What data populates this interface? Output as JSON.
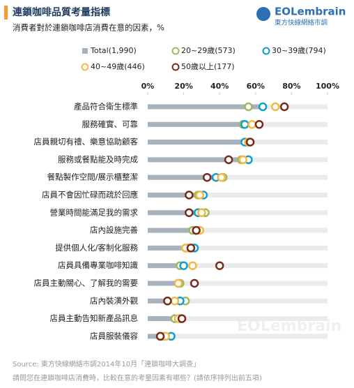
{
  "chart_data": {
    "type": "dot",
    "title": "連鎖咖啡品質考量指標",
    "subtitle": "消費者對於連鎖咖啡店消費在意的因素，%",
    "logo_text": "EOLembrain",
    "logo_subtext": "東方快線網絡市調",
    "watermark": "EOLembrain",
    "categories": [
      "產品符合衛生標準",
      "服務確實、可靠",
      "店員親切有禮、樂意協助顧客",
      "服務或餐點能及時完成",
      "餐點製作空間/展示櫃整潔",
      "店員不會因忙碌而疏於回應",
      "營業時間能滿足我的需求",
      "店內設施完善",
      "提供個人化/客制化服務",
      "店員具備專業咖啡知識",
      "店員主動關心、了解我的需要",
      "店內裝潢外觀",
      "店員主動告知新產品訊息",
      "店員服裝儀容"
    ],
    "series": [
      {
        "name": "Total(1,990)",
        "color": "#a7b2bc",
        "mark": "bar",
        "values": [
          63,
          56,
          55,
          53,
          38,
          28,
          28,
          27,
          24,
          20,
          18,
          17,
          17,
          10
        ]
      },
      {
        "name": "20~29歲(573)",
        "color": "#9bbb59",
        "mark": "circle",
        "values": [
          56,
          53,
          55,
          52,
          42,
          28,
          32,
          25,
          22,
          18,
          18,
          21,
          15,
          9
        ]
      },
      {
        "name": "30~39歲(794)",
        "color": "#0e9fcf",
        "mark": "circle",
        "values": [
          64,
          54,
          54,
          56,
          38,
          31,
          28,
          27,
          26,
          20,
          17,
          18,
          18,
          13
        ]
      },
      {
        "name": "40~49歲(446)",
        "color": "#f4b942",
        "mark": "circle",
        "values": [
          71,
          58,
          56,
          53,
          41,
          29,
          30,
          29,
          21,
          25,
          17,
          15,
          17,
          10
        ]
      },
      {
        "name": "50歲以上(177)",
        "color": "#7a2a1d",
        "mark": "circle",
        "values": [
          76,
          62,
          57,
          45,
          33,
          23,
          23,
          27,
          24,
          40,
          26,
          11,
          19,
          7
        ]
      }
    ],
    "xlim": [
      0,
      100
    ],
    "xticks": [
      {
        "value": 0,
        "label": "0%"
      },
      {
        "value": 20,
        "label": "20%"
      },
      {
        "value": 40,
        "label": "40%"
      },
      {
        "value": 60,
        "label": "60%"
      },
      {
        "value": 80,
        "label": "80%"
      },
      {
        "value": 100,
        "label": "100%"
      }
    ],
    "track_color": "#ebebeb",
    "source": "Source: 東方快線網絡市調2014年10月「連鎖咖啡大調查」",
    "note": "請問您在連鎖咖啡店消費時，比較在意的考量因素有哪些？(請依序排列出前五項)"
  }
}
